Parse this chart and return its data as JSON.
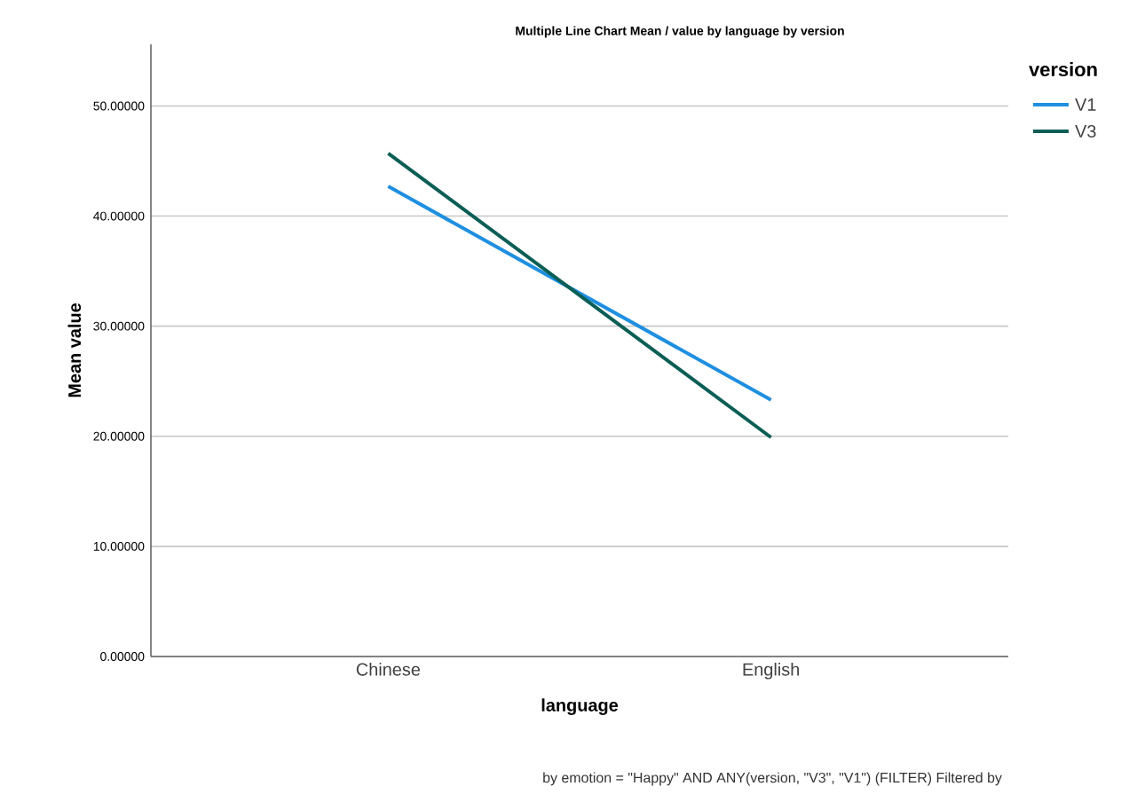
{
  "chart_data": {
    "type": "line",
    "title": "Multiple Line Chart Mean /  value by language by version",
    "xlabel": "language",
    "ylabel": "Mean value",
    "legend_title": "version",
    "categories": [
      "Chinese",
      "English"
    ],
    "series": [
      {
        "name": "V1",
        "color": "#1f8fe0",
        "values": [
          42.7,
          23.3
        ]
      },
      {
        "name": "V3",
        "color": "#0b5e55",
        "values": [
          45.7,
          19.9
        ]
      }
    ],
    "ylim": [
      0,
      55.6
    ],
    "yticks": [
      {
        "value": 0,
        "label": "0.00000"
      },
      {
        "value": 10,
        "label": "10.00000"
      },
      {
        "value": 20,
        "label": "20.00000"
      },
      {
        "value": 30,
        "label": "30.00000"
      },
      {
        "value": 40,
        "label": "40.00000"
      },
      {
        "value": 50,
        "label": "50.00000"
      }
    ],
    "grid": "y",
    "legend": "top right",
    "marker": "none",
    "line_style": "solid",
    "annotations": [
      "by emotion = \"Happy\" AND ANY(version, \"V3\", \"V1\") (FILTER) Filtered by"
    ]
  }
}
